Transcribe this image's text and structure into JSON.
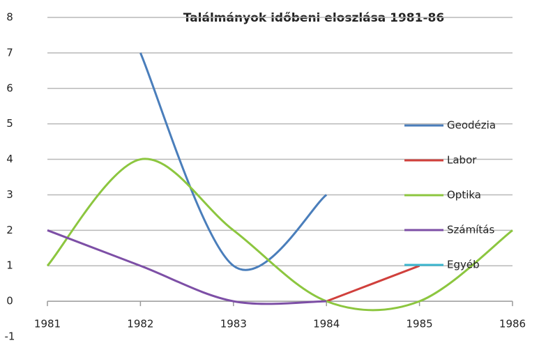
{
  "chart_data": {
    "type": "line",
    "title": "Találmányok időbeni eloszlása 1981-86",
    "x": [
      1981,
      1982,
      1983,
      1984,
      1985,
      1986
    ],
    "xlim": [
      1981,
      1986
    ],
    "xticks": [
      1981,
      1982,
      1983,
      1984,
      1985,
      1986
    ],
    "ylim": [
      -1,
      8
    ],
    "yticks": [
      -1,
      0,
      1,
      2,
      3,
      4,
      5,
      6,
      7,
      8
    ],
    "grid": true,
    "smooth": true,
    "legend": "right",
    "series": [
      {
        "name": "Geodézia",
        "color": "#4a7ebb",
        "values": [
          null,
          7,
          1,
          3,
          null,
          null
        ]
      },
      {
        "name": "Labor",
        "color": "#d0403c",
        "values": [
          null,
          null,
          null,
          0,
          1,
          null
        ]
      },
      {
        "name": "Optika",
        "color": "#8cc63f",
        "values": [
          1,
          4,
          2,
          0,
          0,
          2
        ]
      },
      {
        "name": "Számítás",
        "color": "#7d4fa6",
        "values": [
          2,
          1,
          0,
          0,
          null,
          null
        ]
      },
      {
        "name": "Egyéb",
        "color": "#3cb6cf",
        "values": [
          null,
          null,
          null,
          null,
          null,
          null
        ]
      }
    ]
  }
}
